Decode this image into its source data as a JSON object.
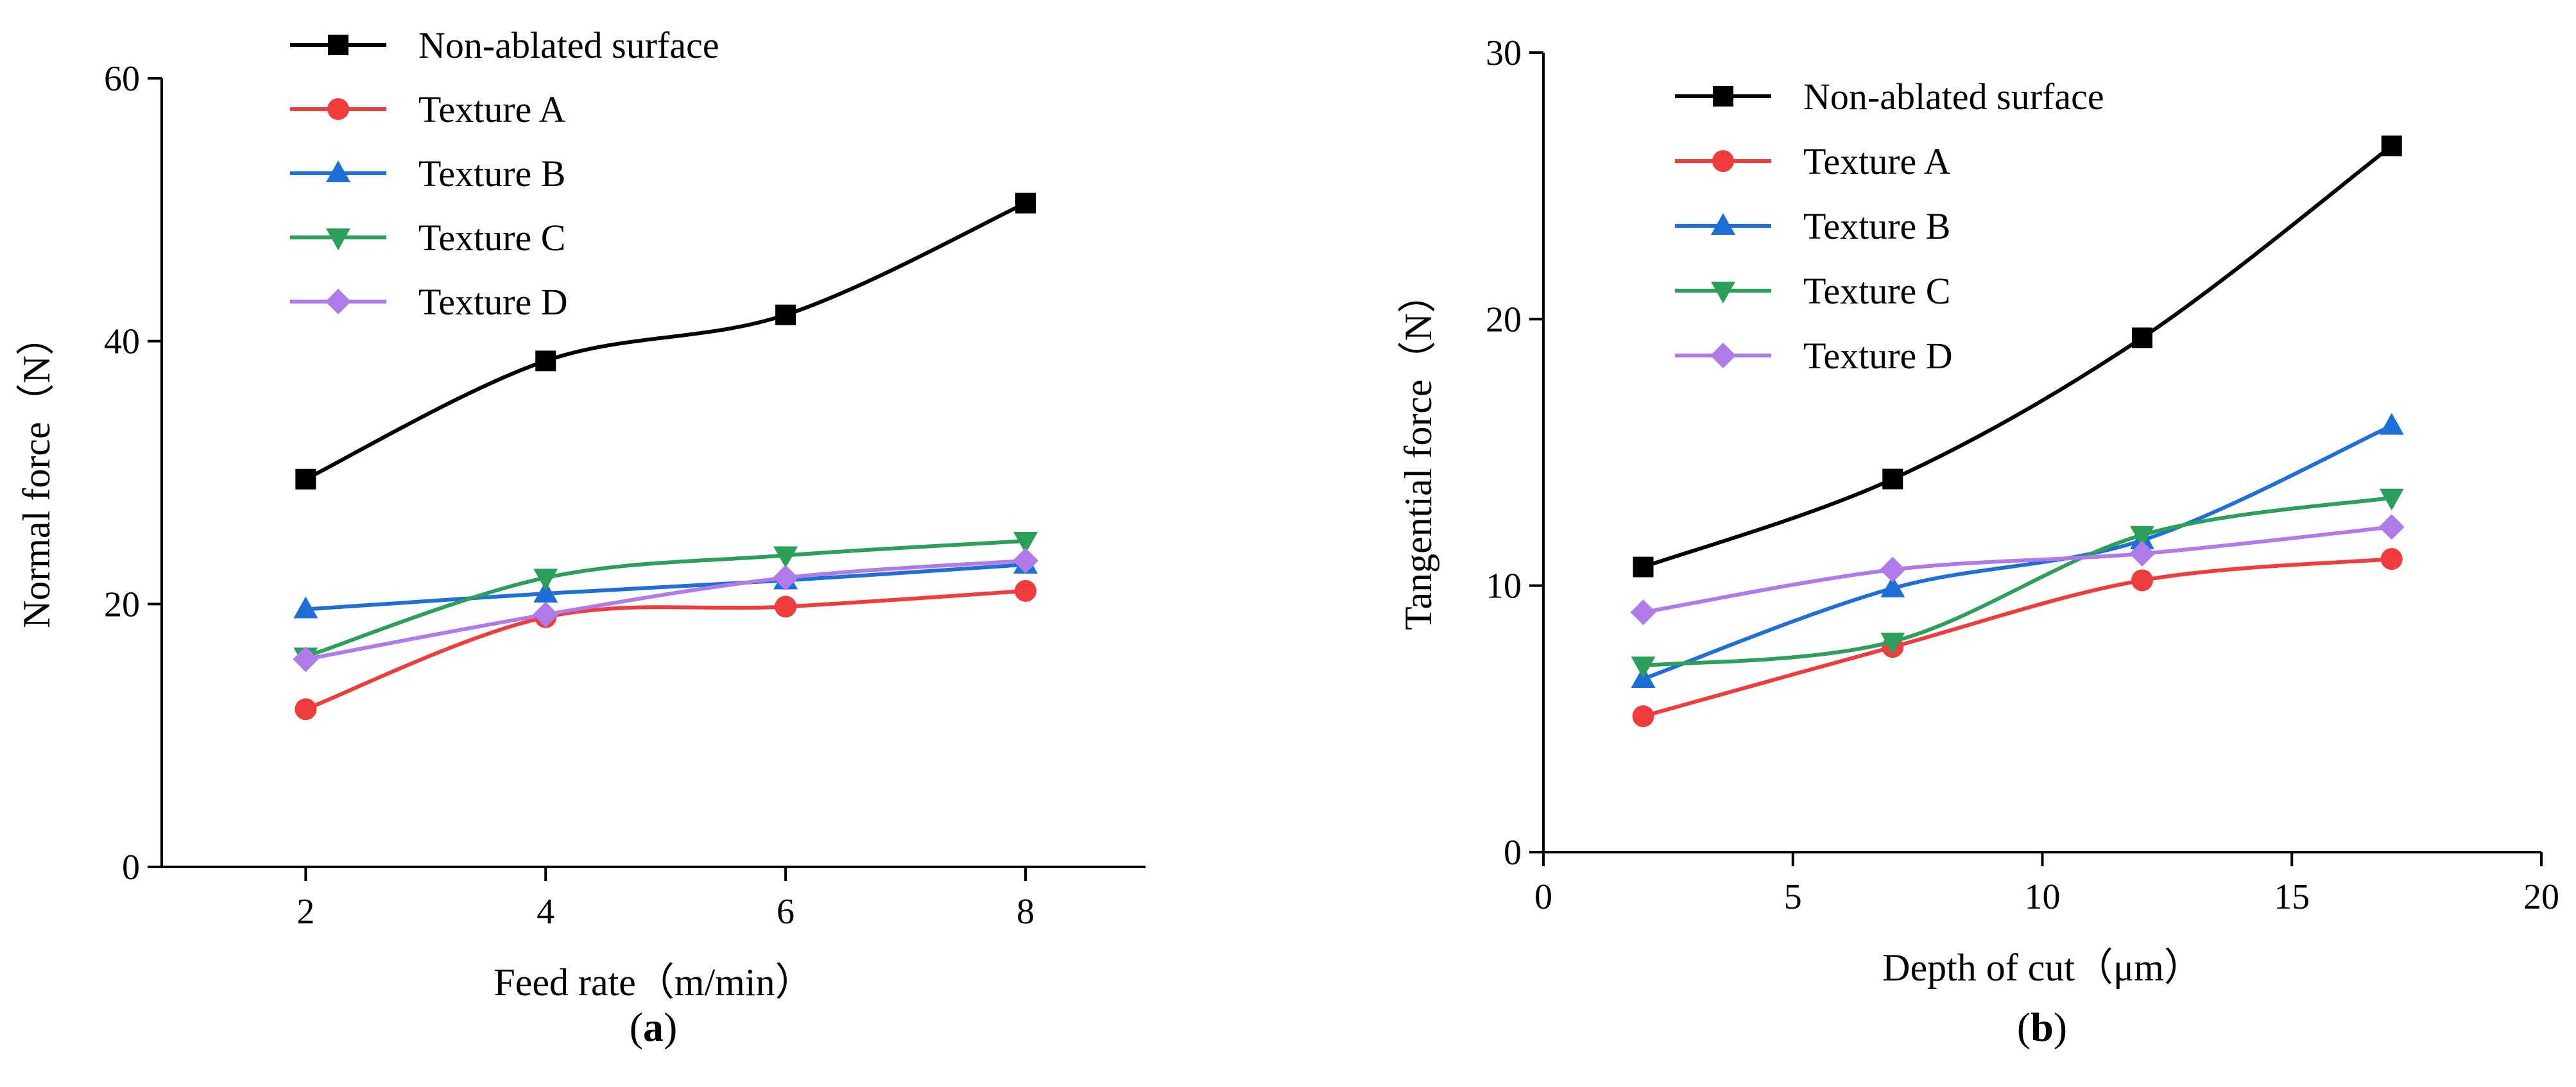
{
  "chart_data": [
    {
      "type": "line",
      "panel_label": "a",
      "xlabel": "Feed rate（m/min）",
      "ylabel": "Normal force（N）",
      "xlim": [
        0.8,
        9.0
      ],
      "ylim": [
        0,
        60
      ],
      "xticks": [
        2,
        4,
        6,
        8
      ],
      "yticks": [
        0,
        20,
        40,
        60
      ],
      "x": [
        2,
        4,
        6,
        8
      ],
      "legend_position": "top-center",
      "series": [
        {
          "name": "Non-ablated surface",
          "marker": "square",
          "color": "#000000",
          "values": [
            29.5,
            38.5,
            42.0,
            50.5
          ]
        },
        {
          "name": "Texture A",
          "marker": "circle",
          "color": "#f03c3c",
          "values": [
            12.0,
            19.0,
            19.8,
            21.0
          ]
        },
        {
          "name": "Texture B",
          "marker": "triangle-up",
          "color": "#1f6fd8",
          "values": [
            19.6,
            20.8,
            21.8,
            23.0
          ]
        },
        {
          "name": "Texture C",
          "marker": "triangle-down",
          "color": "#2ca05a",
          "values": [
            16.0,
            22.0,
            23.7,
            24.8
          ]
        },
        {
          "name": "Texture D",
          "marker": "diamond",
          "color": "#b07ae8",
          "values": [
            15.8,
            19.2,
            22.0,
            23.3
          ]
        }
      ]
    },
    {
      "type": "line",
      "panel_label": "b",
      "xlabel": "Depth of cut（μm）",
      "ylabel": "Tangential force（N）",
      "xlim": [
        0,
        20
      ],
      "ylim": [
        0,
        30
      ],
      "xticks": [
        0,
        5,
        10,
        15,
        20
      ],
      "yticks": [
        0,
        10,
        20,
        30
      ],
      "x": [
        2,
        7,
        12,
        17
      ],
      "legend_position": "top-left",
      "series": [
        {
          "name": "Non-ablated surface",
          "marker": "square",
          "color": "#000000",
          "values": [
            10.7,
            14.0,
            19.3,
            26.5
          ]
        },
        {
          "name": "Texture A",
          "marker": "circle",
          "color": "#f03c3c",
          "values": [
            5.1,
            7.7,
            10.2,
            11.0
          ]
        },
        {
          "name": "Texture B",
          "marker": "triangle-up",
          "color": "#1f6fd8",
          "values": [
            6.5,
            9.9,
            11.7,
            16.0
          ]
        },
        {
          "name": "Texture C",
          "marker": "triangle-down",
          "color": "#2ca05a",
          "values": [
            7.0,
            7.9,
            11.9,
            13.3
          ]
        },
        {
          "name": "Texture D",
          "marker": "diamond",
          "color": "#b07ae8",
          "values": [
            9.0,
            10.6,
            11.2,
            12.2
          ]
        }
      ]
    }
  ]
}
